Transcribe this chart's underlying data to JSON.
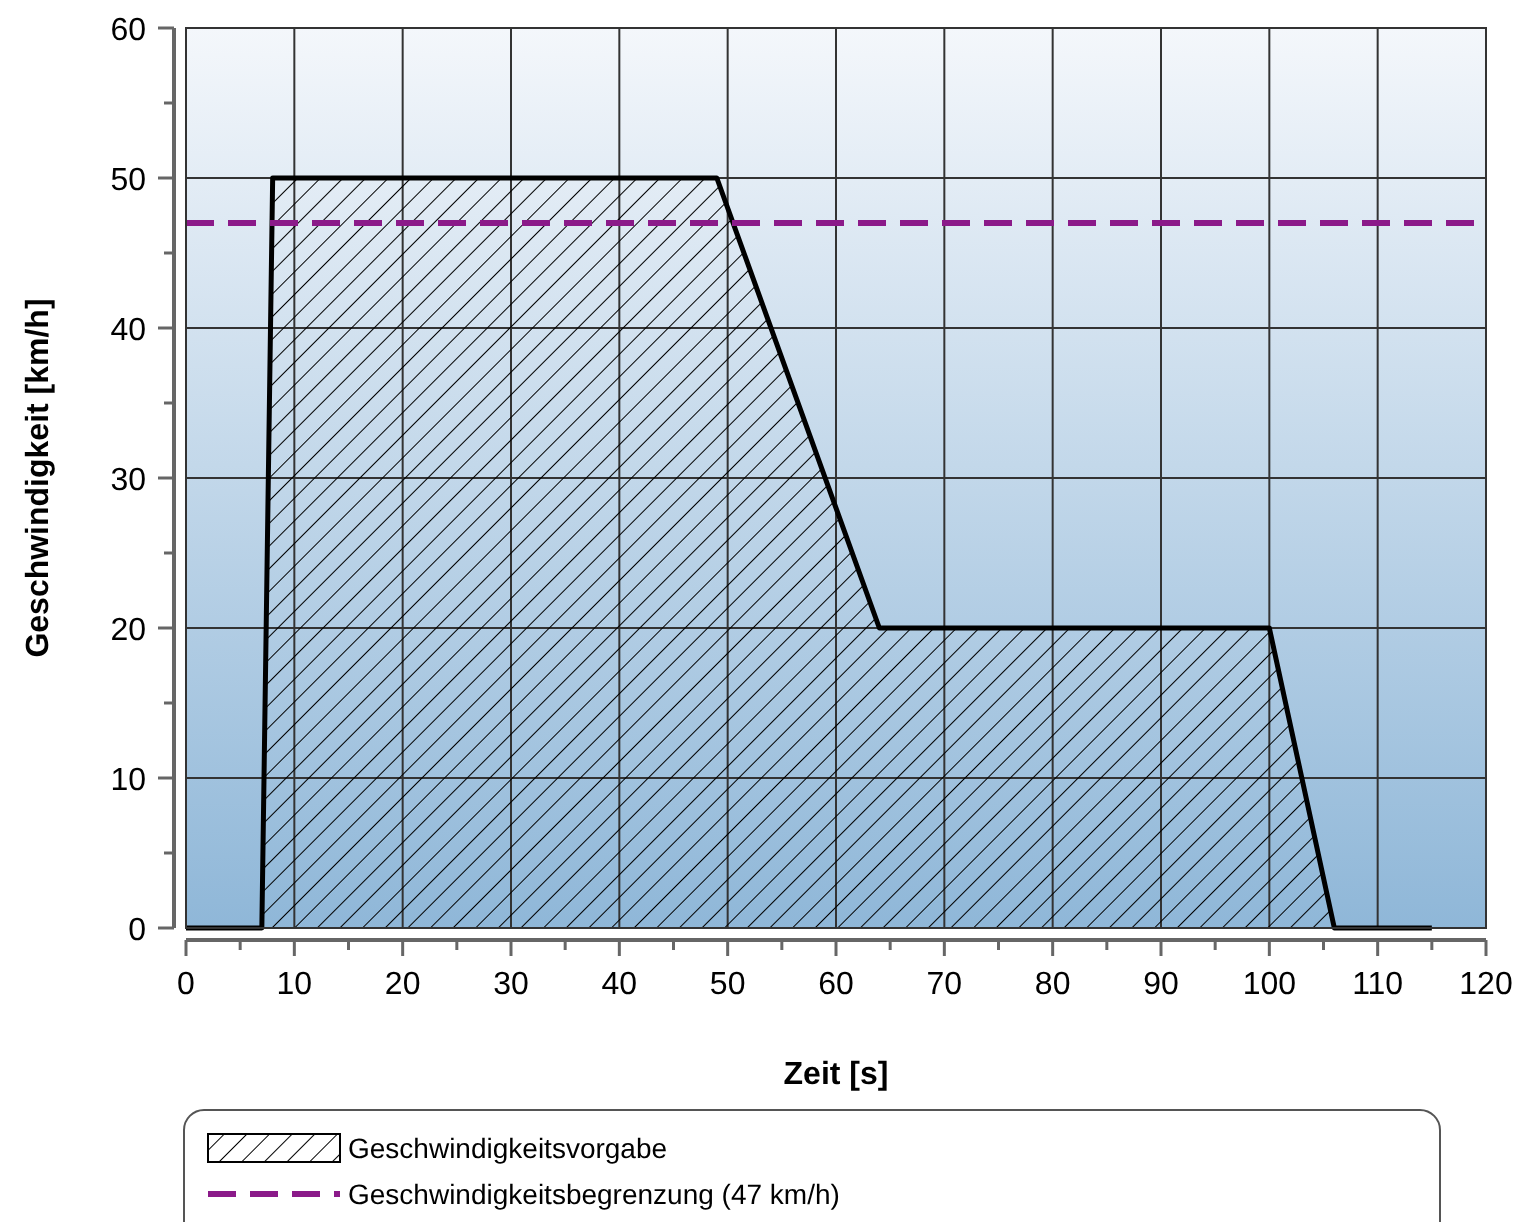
{
  "chart_data": {
    "type": "area",
    "xlabel": "Zeit [s]",
    "ylabel": "Geschwindigkeit [km/h]",
    "xlim": [
      0,
      120
    ],
    "ylim": [
      0,
      60
    ],
    "xticks": [
      0,
      {
        "value": 5,
        "label": null
      },
      10,
      {
        "value": 15,
        "label": null
      },
      20,
      {
        "value": 25,
        "label": null
      },
      30,
      {
        "value": 35,
        "label": null
      },
      40,
      {
        "value": 45,
        "label": null
      },
      50,
      {
        "value": 55,
        "label": null
      },
      60,
      {
        "value": 65,
        "label": null
      },
      70,
      {
        "value": 75,
        "label": null
      },
      80,
      {
        "value": 85,
        "label": null
      },
      90,
      {
        "value": 95,
        "label": null
      },
      100,
      {
        "value": 105,
        "label": null
      },
      110,
      {
        "value": 115,
        "label": null
      },
      120
    ],
    "yticks": [
      0,
      {
        "value": 5,
        "label": null
      },
      10,
      {
        "value": 15,
        "label": null
      },
      20,
      {
        "value": 25,
        "label": null
      },
      30,
      {
        "value": 35,
        "label": null
      },
      40,
      {
        "value": 45,
        "label": null
      },
      50,
      {
        "value": 55,
        "label": null
      },
      60
    ],
    "grid": true,
    "legend": "bottom",
    "series": [
      {
        "name": "Geschwindigkeitsvorgabe",
        "color": "#000000",
        "x": [
          0,
          7,
          8,
          49,
          64,
          100,
          106,
          115
        ],
        "values": [
          0,
          0,
          50,
          50,
          20,
          20,
          0,
          0
        ]
      }
    ],
    "ref_lines": [
      {
        "axis": "y",
        "value": 47,
        "label": "Geschwindigkeitsbegrenzung (47 km/h)",
        "color": "#8b1a89",
        "line_style": "dashed"
      }
    ]
  }
}
